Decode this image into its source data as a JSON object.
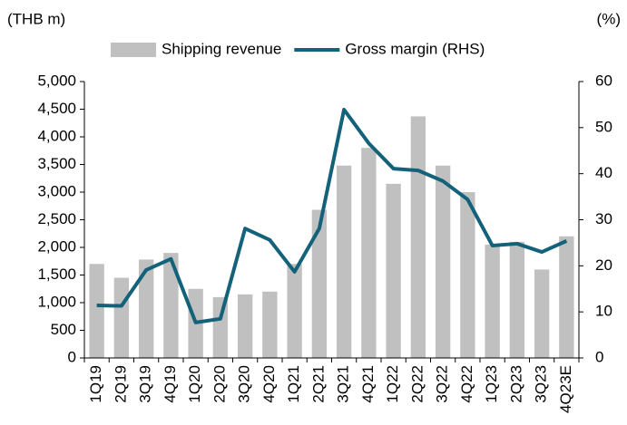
{
  "chart_data": {
    "type": "bar_line",
    "y_label": "(THB m)",
    "y2_label": "(%)",
    "categories": [
      "1Q19",
      "2Q19",
      "3Q19",
      "4Q19",
      "1Q20",
      "2Q20",
      "3Q20",
      "4Q20",
      "1Q21",
      "2Q21",
      "3Q21",
      "4Q21",
      "1Q22",
      "2Q22",
      "3Q22",
      "4Q22",
      "1Q23",
      "2Q23",
      "3Q23",
      "4Q23E"
    ],
    "series": [
      {
        "name": "Shipping revenue",
        "color": "#c0c0c0",
        "type": "bar",
        "axis": "y",
        "values": [
          1700,
          1450,
          1780,
          1900,
          1250,
          1100,
          1150,
          1200,
          1700,
          2680,
          3480,
          3800,
          3150,
          4370,
          3480,
          3000,
          2050,
          2100,
          1600,
          2200
        ]
      },
      {
        "name": "Gross margin (RHS)",
        "color": "#13627a",
        "type": "line",
        "axis": "y2",
        "values": [
          11.4,
          11.3,
          19.1,
          21.5,
          7.7,
          8.5,
          28.1,
          25.6,
          18.7,
          28.1,
          53.9,
          46.6,
          41.1,
          40.7,
          38.4,
          34.4,
          24.4,
          24.8,
          23.0,
          25.4
        ]
      }
    ],
    "ylim": [
      0,
      5000
    ],
    "yticks": [
      0,
      500,
      {
        "value": 1000,
        "label": "1,000"
      },
      {
        "value": 1500,
        "label": "1,500"
      },
      {
        "value": 2000,
        "label": "2,000"
      },
      {
        "value": 2500,
        "label": "2,500"
      },
      {
        "value": 3000,
        "label": "3,000"
      },
      {
        "value": 3500,
        "label": "3,500"
      },
      {
        "value": 4000,
        "label": "4,000"
      },
      {
        "value": 4500,
        "label": "4,500"
      },
      {
        "value": 5000,
        "label": "5,000"
      }
    ],
    "y2lim": [
      0,
      60
    ],
    "y2ticks": [
      0,
      10,
      20,
      30,
      40,
      50,
      60
    ],
    "legend": "top"
  }
}
